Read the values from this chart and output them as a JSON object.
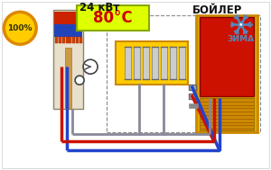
{
  "bg_color": "#f0f0f0",
  "title_24": "24 кВт",
  "title_80": "80°C",
  "label_100": "100%",
  "label_boiler": "БОЙЛЕР",
  "label_zima": "ЗИМА",
  "pipe_red": "#cc1100",
  "pipe_blue": "#2244cc",
  "pipe_gray": "#888899",
  "dashed_color": "#888888",
  "temp_box_bg": "#ddff00",
  "temp_box_border": "#88aa00",
  "circle_bg": "#ffcc00",
  "circle_border": "#dd8800",
  "star_color": "#5588bb",
  "boiler_outer": "#ddaa00",
  "boiler_inner_red": "#cc1100",
  "boiler_vent": "#cc8800",
  "radiator_box": "#ffcc00",
  "radiator_border": "#cc8800",
  "heater_body": "#ddddbb",
  "heater_border": "#888866"
}
